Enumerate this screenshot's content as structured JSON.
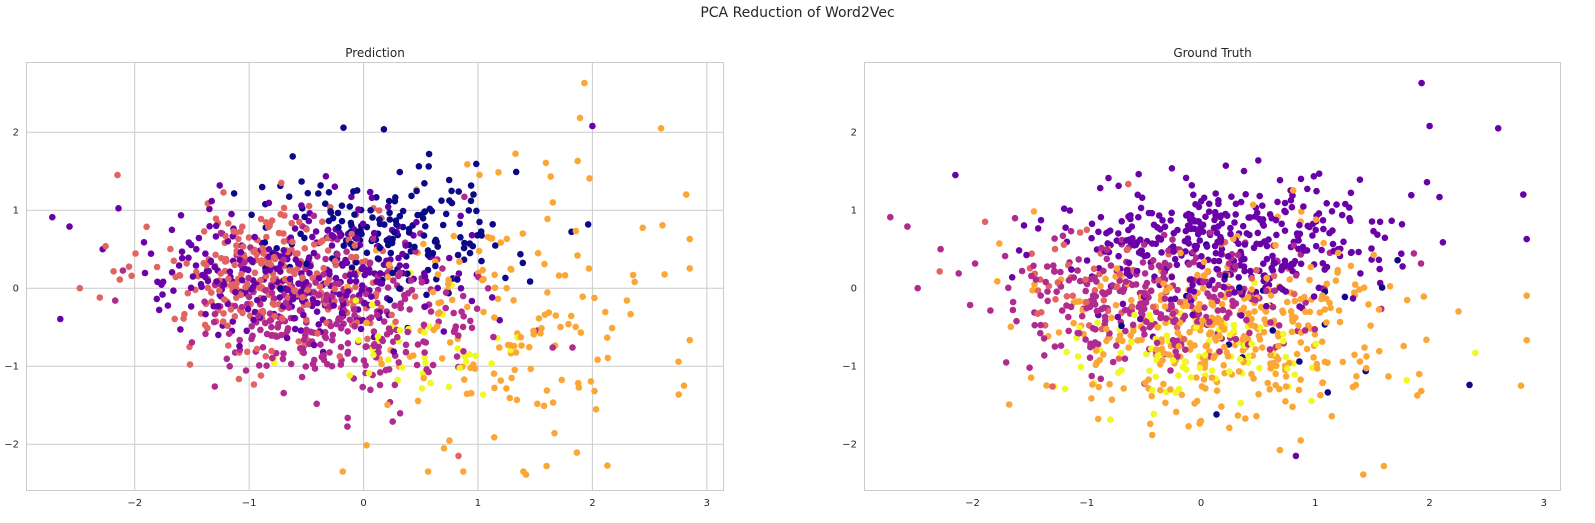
{
  "figure": {
    "suptitle": "PCA Reduction of Word2Vec"
  },
  "colors": {
    "palette": [
      "#0d0887",
      "#6a00a8",
      "#b12a90",
      "#e16462",
      "#fca636",
      "#f0f921"
    ],
    "grid": "#cccccc",
    "axes_edge": "#cccccc",
    "text": "#262626"
  },
  "chart_data": [
    {
      "type": "scatter",
      "title": "Prediction",
      "xlim": [
        -2.95,
        3.15
      ],
      "ylim": [
        -2.6,
        2.9
      ],
      "xticks": [
        -2,
        -1,
        0,
        1,
        2,
        3
      ],
      "yticks": [
        -2,
        -1,
        0,
        1,
        2
      ],
      "xtick_labels": [
        "−2",
        "−1",
        "0",
        "1",
        "2",
        "3"
      ],
      "ytick_labels": [
        "−2",
        "−1",
        "0",
        "1",
        "2"
      ],
      "grid": true,
      "seed": 7,
      "colormap": "plasma",
      "cluster_colors": [
        "#0d0887",
        "#6a00a8",
        "#b12a90",
        "#e16462",
        "#fca636",
        "#f0f921"
      ],
      "clusters": [
        {
          "color": 0,
          "n": 180,
          "cx": 0.3,
          "cy": 0.75,
          "sx": 0.55,
          "sy": 0.4
        },
        {
          "color": 1,
          "n": 320,
          "cx": -0.6,
          "cy": 0.2,
          "sx": 0.6,
          "sy": 0.45
        },
        {
          "color": 2,
          "n": 300,
          "cx": -0.2,
          "cy": -0.35,
          "sx": 0.6,
          "sy": 0.45
        },
        {
          "color": 3,
          "n": 280,
          "cx": -0.75,
          "cy": 0.15,
          "sx": 0.5,
          "sy": 0.45
        },
        {
          "color": 4,
          "n": 160,
          "cx": 1.2,
          "cy": -0.4,
          "sx": 0.7,
          "sy": 0.9
        },
        {
          "color": 5,
          "n": 40,
          "cx": 0.55,
          "cy": -0.7,
          "sx": 0.45,
          "sy": 0.35
        }
      ],
      "highlights": [
        {
          "x": -2.72,
          "y": 0.91,
          "color": 1
        },
        {
          "x": -2.57,
          "y": 0.79,
          "color": 1
        },
        {
          "x": -2.28,
          "y": 0.5,
          "color": 1
        },
        {
          "x": -2.48,
          "y": 0.0,
          "color": 3
        },
        {
          "x": -2.15,
          "y": 1.45,
          "color": 3
        },
        {
          "x": -2.13,
          "y": 0.11,
          "color": 3
        },
        {
          "x": 1.93,
          "y": 2.63,
          "color": 4
        },
        {
          "x": 2.0,
          "y": 2.08,
          "color": 1
        },
        {
          "x": 2.6,
          "y": 2.05,
          "color": 4
        },
        {
          "x": 2.85,
          "y": 0.63,
          "color": 4
        },
        {
          "x": 2.82,
          "y": 1.2,
          "color": 4
        },
        {
          "x": 2.8,
          "y": -1.25,
          "color": 4
        },
        {
          "x": 1.42,
          "y": -2.39,
          "color": 4
        },
        {
          "x": 0.83,
          "y": -2.15,
          "color": 3
        },
        {
          "x": 1.6,
          "y": -2.28,
          "color": 4
        },
        {
          "x": -1.3,
          "y": -1.26,
          "color": 2
        }
      ]
    },
    {
      "type": "scatter",
      "title": "Ground Truth",
      "xlim": [
        -2.95,
        3.15
      ],
      "ylim": [
        -2.6,
        2.9
      ],
      "xticks": [
        -2,
        -1,
        0,
        1,
        2,
        3
      ],
      "yticks": [
        -2,
        -1,
        0,
        1,
        2
      ],
      "xtick_labels": [
        "−2",
        "−1",
        "0",
        "1",
        "2",
        "3"
      ],
      "ytick_labels": [
        "−2",
        "−1",
        "0",
        "1",
        "2"
      ],
      "grid": false,
      "seed": 19,
      "colormap": "plasma",
      "cluster_colors": [
        "#0d0887",
        "#6a00a8",
        "#b12a90",
        "#e16462",
        "#fca636",
        "#f0f921"
      ],
      "clusters": [
        {
          "color": 1,
          "n": 380,
          "cx": 0.2,
          "cy": 0.6,
          "sx": 0.75,
          "sy": 0.4
        },
        {
          "color": 2,
          "n": 300,
          "cx": -0.4,
          "cy": -0.1,
          "sx": 0.7,
          "sy": 0.45
        },
        {
          "color": 4,
          "n": 380,
          "cx": 0.25,
          "cy": -0.55,
          "sx": 0.75,
          "sy": 0.55
        },
        {
          "color": 5,
          "n": 90,
          "cx": -0.1,
          "cy": -0.9,
          "sx": 0.55,
          "sy": 0.35
        },
        {
          "color": 3,
          "n": 60,
          "cx": -0.8,
          "cy": 0.1,
          "sx": 0.6,
          "sy": 0.4
        },
        {
          "color": 0,
          "n": 20,
          "cx": 0.7,
          "cy": -0.6,
          "sx": 0.6,
          "sy": 0.5
        }
      ],
      "highlights": [
        {
          "x": -2.72,
          "y": 0.91,
          "color": 2
        },
        {
          "x": -2.57,
          "y": 0.79,
          "color": 2
        },
        {
          "x": -2.28,
          "y": 0.5,
          "color": 2
        },
        {
          "x": -2.48,
          "y": 0.0,
          "color": 2
        },
        {
          "x": -2.15,
          "y": 1.45,
          "color": 1
        },
        {
          "x": 1.93,
          "y": 2.63,
          "color": 1
        },
        {
          "x": 2.0,
          "y": 2.08,
          "color": 1
        },
        {
          "x": 2.6,
          "y": 2.05,
          "color": 1
        },
        {
          "x": 2.85,
          "y": 0.63,
          "color": 1
        },
        {
          "x": 2.82,
          "y": 1.2,
          "color": 1
        },
        {
          "x": 2.8,
          "y": -1.25,
          "color": 4
        },
        {
          "x": 1.42,
          "y": -2.39,
          "color": 4
        },
        {
          "x": 0.83,
          "y": -2.15,
          "color": 1
        },
        {
          "x": 1.6,
          "y": -2.28,
          "color": 4
        },
        {
          "x": -1.3,
          "y": -1.26,
          "color": 3
        },
        {
          "x": 2.4,
          "y": -0.83,
          "color": 5
        },
        {
          "x": 1.8,
          "y": -1.18,
          "color": 5
        }
      ]
    }
  ]
}
